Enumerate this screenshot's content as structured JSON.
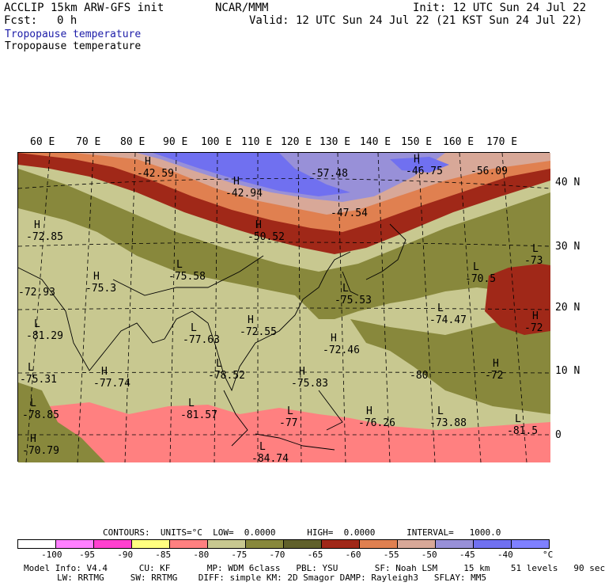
{
  "header": {
    "model": "ACCLIP 15km ARW-GFS init",
    "center": "NCAR/MMM",
    "init": "Init: 12 UTC Sun 24 Jul 22",
    "fcst_label": "Fcst:",
    "fcst_value": "0 h",
    "valid": "Valid: 12 UTC Sun 24 Jul 22 (21 KST Sun 24 Jul 22)",
    "field_blue": "Tropopause temperature",
    "field_black": "Tropopause temperature"
  },
  "map": {
    "lon_labels": [
      "60 E",
      "70 E",
      "80 E",
      "90 E",
      "100 E",
      "110 E",
      "120 E",
      "130 E",
      "140 E",
      "150 E",
      "160 E",
      "170 E"
    ],
    "lat_labels": [
      "40 N",
      "30 N",
      "20 N",
      "10 N",
      "0"
    ],
    "markers": [
      {
        "letter": "H",
        "value": "-42.59"
      },
      {
        "letter": "H",
        "value": "-42.94"
      },
      {
        "letter": "",
        "value": "-57.48"
      },
      {
        "letter": "H",
        "value": "-46.75"
      },
      {
        "letter": "",
        "value": "-56.09"
      },
      {
        "letter": "",
        "value": "-47.54"
      },
      {
        "letter": "H",
        "value": "-50.52"
      },
      {
        "letter": "H",
        "value": "-72.85"
      },
      {
        "letter": "L",
        "value": "-75.58"
      },
      {
        "letter": "H",
        "value": "-75.3"
      },
      {
        "letter": "L",
        "value": "-73"
      },
      {
        "letter": "L",
        "value": "-70.5"
      },
      {
        "letter": "L",
        "value": "-75.53"
      },
      {
        "letter": "",
        "value": "-72.93"
      },
      {
        "letter": "L",
        "value": "-81.29"
      },
      {
        "letter": "L",
        "value": "-77.63"
      },
      {
        "letter": "H",
        "value": "-72.55"
      },
      {
        "letter": "H",
        "value": "-72.46"
      },
      {
        "letter": "L",
        "value": "-74.47"
      },
      {
        "letter": "H",
        "value": "-72"
      },
      {
        "letter": "L",
        "value": "-75.31"
      },
      {
        "letter": "H",
        "value": "-77.74"
      },
      {
        "letter": "L",
        "value": "-78.52"
      },
      {
        "letter": "H",
        "value": "-75.83"
      },
      {
        "letter": "",
        "value": "-80"
      },
      {
        "letter": "H",
        "value": "-72"
      },
      {
        "letter": "L",
        "value": "-78.85"
      },
      {
        "letter": "L",
        "value": "-81.57"
      },
      {
        "letter": "L",
        "value": "-77"
      },
      {
        "letter": "H",
        "value": "-76.26"
      },
      {
        "letter": "L",
        "value": "-73.88"
      },
      {
        "letter": "L",
        "value": "-81.5"
      },
      {
        "letter": "H",
        "value": "-70.79"
      },
      {
        "letter": "L",
        "value": "-84.74"
      }
    ]
  },
  "legend": {
    "contours": "CONTOURS:  UNITS=°C  LOW=  0.0000      HIGH=  0.0000      INTERVAL=   1000.0",
    "ticks": [
      "-100",
      "-95",
      "-90",
      "-85",
      "-80",
      "-75",
      "-70",
      "-65",
      "-60",
      "-55",
      "-50",
      "-45",
      "-40"
    ],
    "unit": "°C",
    "colors": [
      "#ffffff",
      "#ff80ff",
      "#ff40d0",
      "#ffff80",
      "#ff8080",
      "#c8c890",
      "#88883c",
      "#60602a",
      "#a02818",
      "#e08050",
      "#d8a898",
      "#9890d8",
      "#7070f0",
      "#7f80ff"
    ]
  },
  "model_info": {
    "line1": "Model Info: V4.4      CU: KF       MP: WDM 6class   PBL: YSU       SF: Noah LSM     15 km    51 levels   90 sec",
    "line2": "LW: RRTMG     SW: RRTMG    DIFF: simple KM: 2D Smagor DAMP: Rayleigh3   SFLAY: MM5"
  }
}
